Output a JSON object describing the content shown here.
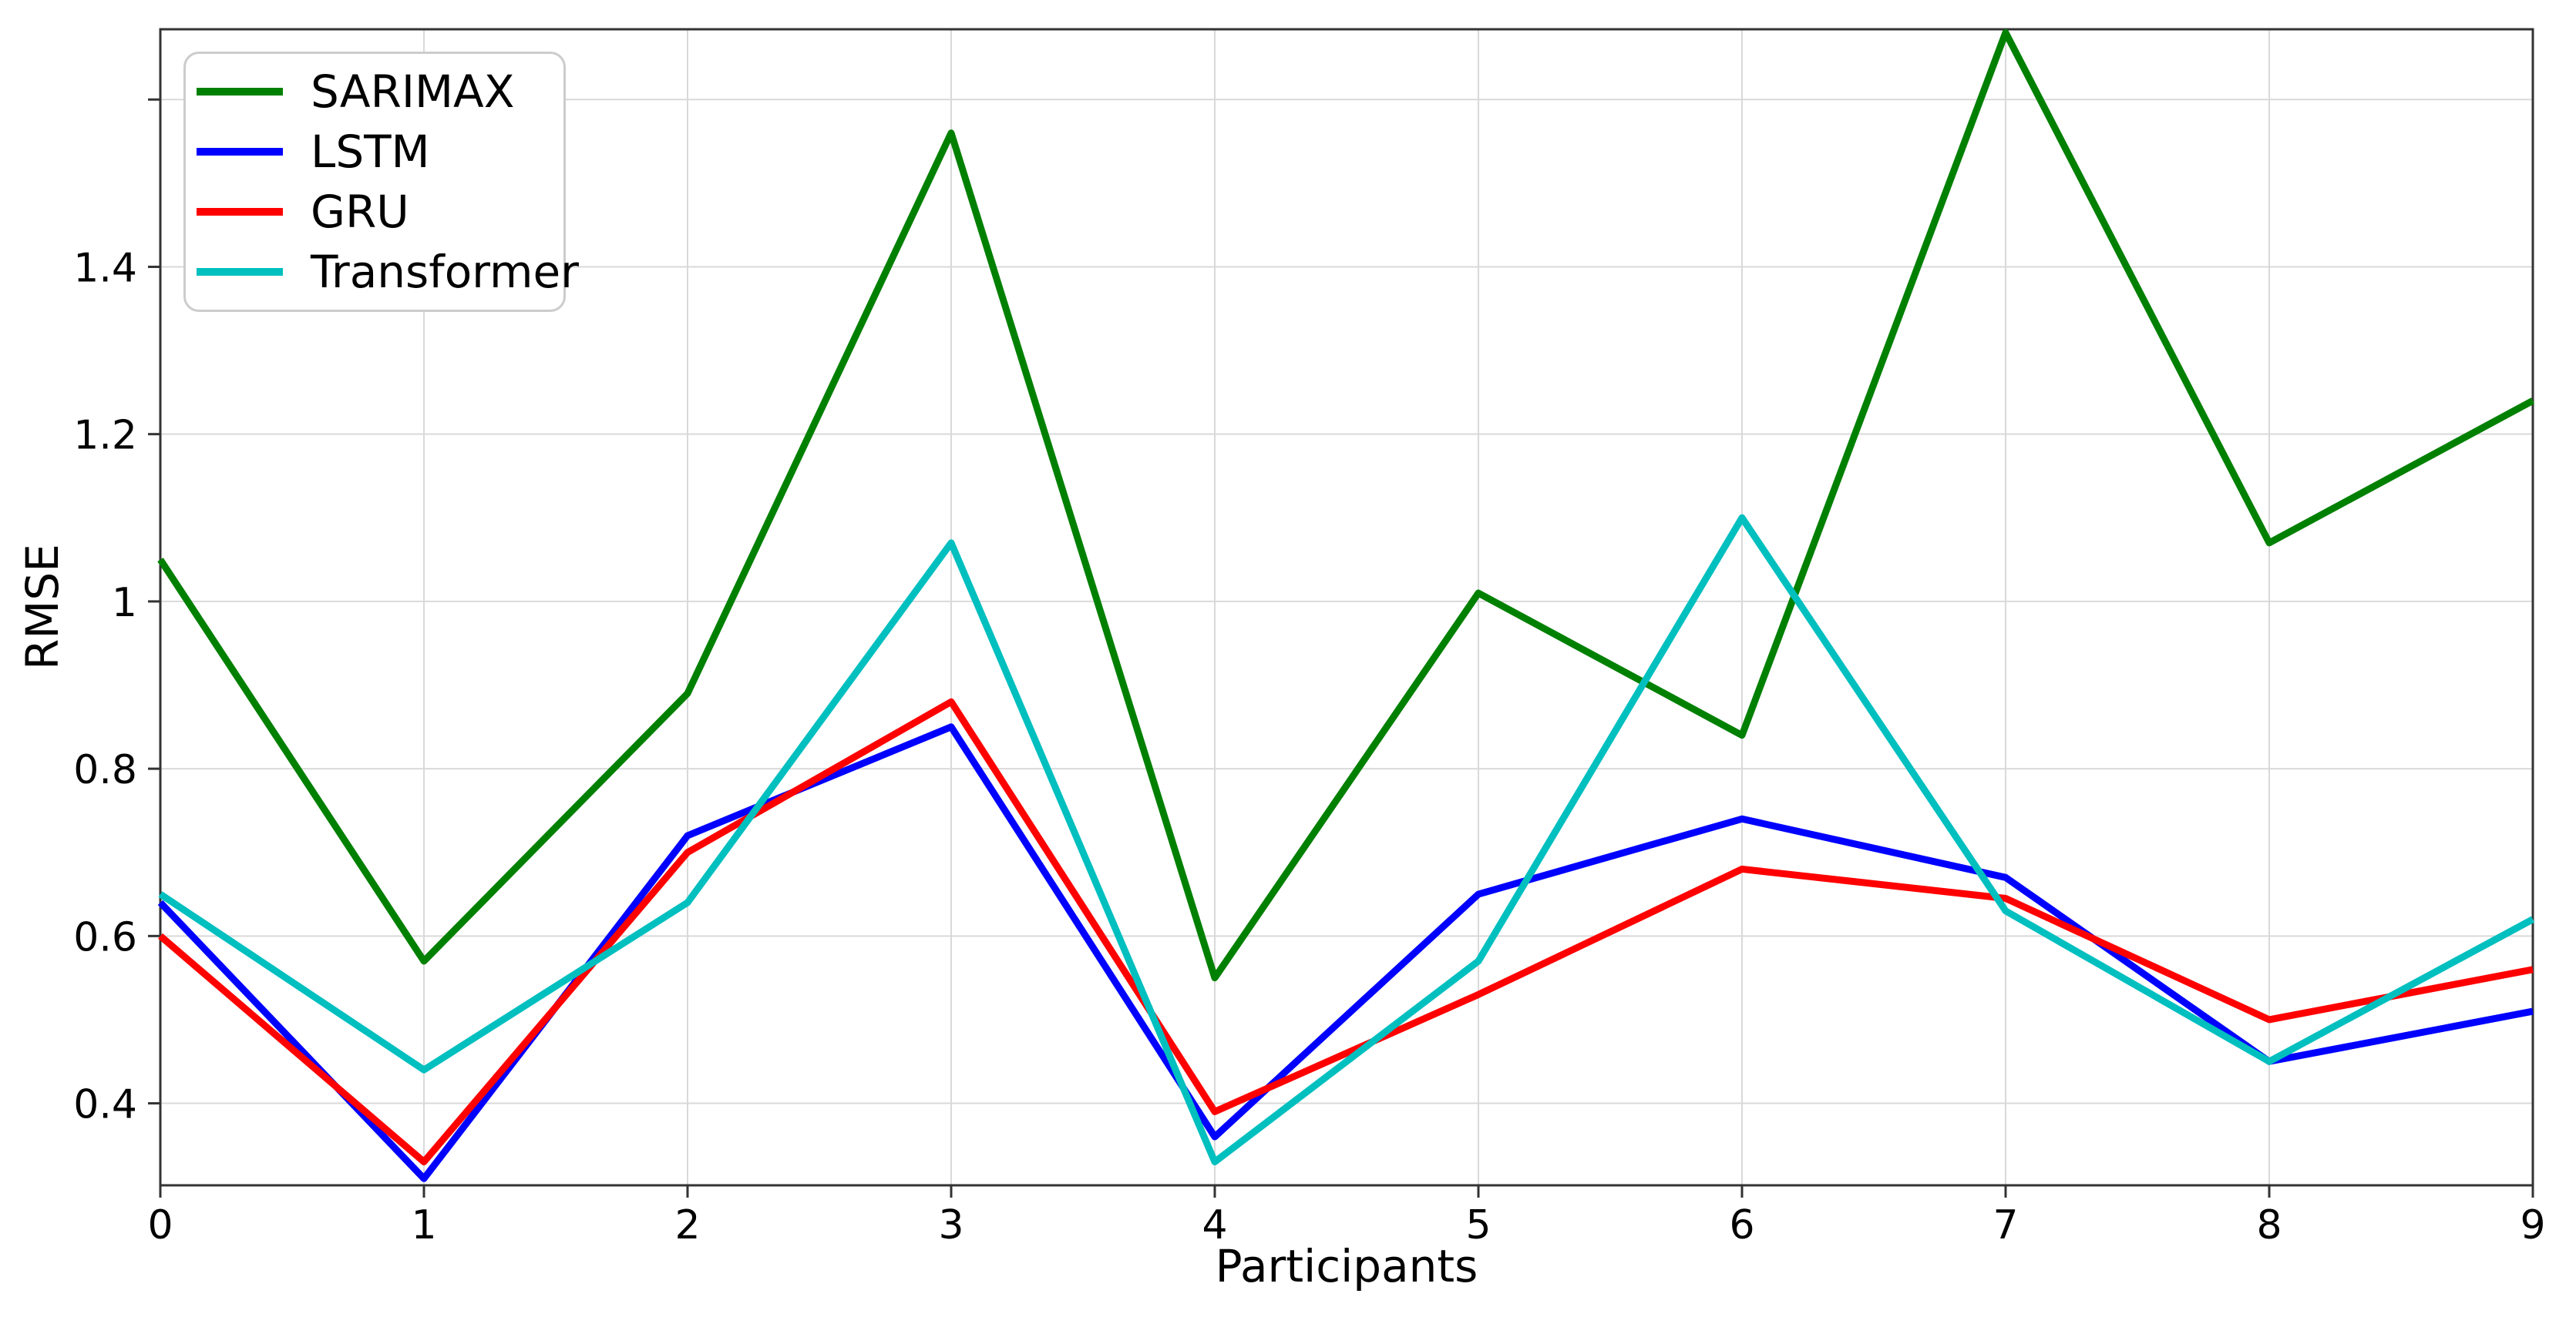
{
  "figure": {
    "background": "#ffffff",
    "spine_color": "#333333",
    "grid_color": "#d9d9d9",
    "text_color": "#000000"
  },
  "chart_data": {
    "type": "line",
    "title": "",
    "xlabel": "Participants",
    "ylabel": "RMSE",
    "grid": true,
    "legend_position": "upper-left",
    "xlim": [
      0,
      9
    ],
    "ylim": [
      0.302,
      1.684
    ],
    "x": [
      0,
      1,
      2,
      3,
      4,
      5,
      6,
      7,
      8,
      9
    ],
    "xticks": [
      {
        "value": 0,
        "label": "0"
      },
      {
        "value": 1,
        "label": "1"
      },
      {
        "value": 2,
        "label": "2"
      },
      {
        "value": 3,
        "label": "3"
      },
      {
        "value": 4,
        "label": "4"
      },
      {
        "value": 5,
        "label": "5"
      },
      {
        "value": 6,
        "label": "6"
      },
      {
        "value": 7,
        "label": "7"
      },
      {
        "value": 8,
        "label": "8"
      },
      {
        "value": 9,
        "label": "9"
      }
    ],
    "yticks": [
      {
        "value": 0.4,
        "label": "0.4"
      },
      {
        "value": 0.6,
        "label": "0.6"
      },
      {
        "value": 0.8,
        "label": "0.8"
      },
      {
        "value": 1.0,
        "label": "1"
      },
      {
        "value": 1.2,
        "label": "1.2"
      },
      {
        "value": 1.4,
        "label": "1.4"
      },
      {
        "value": 1.6,
        "label": ""
      }
    ],
    "series": [
      {
        "name": "SARIMAX",
        "color": "#008000",
        "values": [
          1.05,
          0.57,
          0.89,
          1.56,
          0.55,
          1.01,
          0.84,
          1.68,
          1.07,
          1.24
        ]
      },
      {
        "name": "LSTM",
        "color": "#0000ff",
        "values": [
          0.64,
          0.31,
          0.72,
          0.85,
          0.36,
          0.65,
          0.74,
          0.67,
          0.45,
          0.51
        ]
      },
      {
        "name": "GRU",
        "color": "#ff0000",
        "values": [
          0.6,
          0.33,
          0.7,
          0.88,
          0.39,
          0.53,
          0.68,
          0.645,
          0.5,
          0.56
        ]
      },
      {
        "name": "Transformer",
        "color": "#00bfbf",
        "values": [
          0.65,
          0.44,
          0.64,
          1.07,
          0.33,
          0.57,
          1.1,
          0.63,
          0.45,
          0.62
        ]
      }
    ]
  }
}
